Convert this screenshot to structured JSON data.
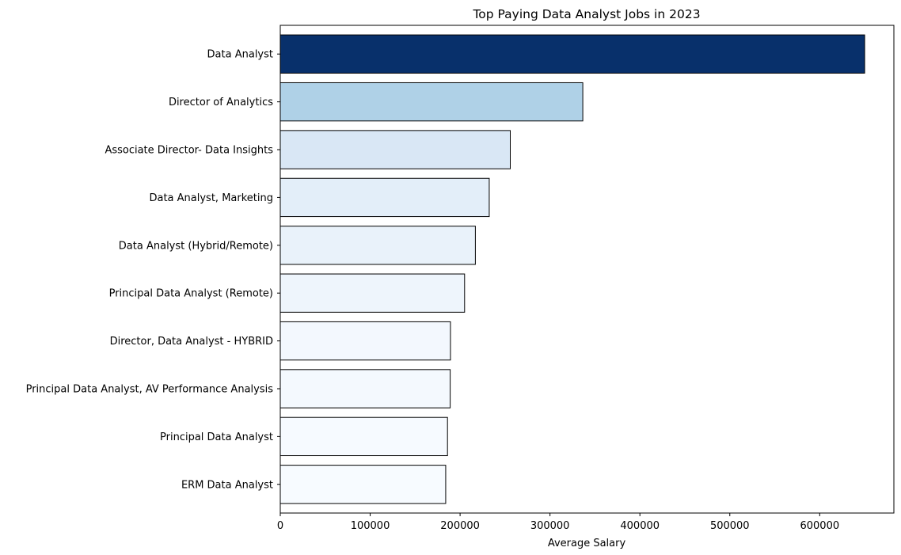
{
  "chart_data": {
    "type": "bar",
    "orientation": "horizontal",
    "title": "Top Paying Data Analyst Jobs in 2023",
    "xlabel": "Average Salary",
    "ylabel": "",
    "categories": [
      "Data Analyst",
      "Director of Analytics",
      "Associate Director- Data Insights",
      "Data Analyst, Marketing",
      "Data Analyst (Hybrid/Remote)",
      "Principal Data Analyst (Remote)",
      "Director, Data Analyst - HYBRID",
      "Principal Data Analyst, AV Performance Analysis",
      "Principal Data Analyst",
      "ERM Data Analyst"
    ],
    "values": [
      650000,
      336500,
      255830,
      232423,
      217000,
      205000,
      189309,
      189000,
      186000,
      184000
    ],
    "bar_colors": [
      "#08306b",
      "#afd1e7",
      "#d9e7f5",
      "#e3eef9",
      "#e9f2fa",
      "#eef5fc",
      "#f3f8fe",
      "#f4f9fe",
      "#f6faff",
      "#f7fbff"
    ],
    "xlim": [
      0,
      682500
    ],
    "xticks": [
      0,
      100000,
      200000,
      300000,
      400000,
      500000,
      600000
    ],
    "grid": false,
    "legend": "none",
    "colormap": "Blues"
  }
}
